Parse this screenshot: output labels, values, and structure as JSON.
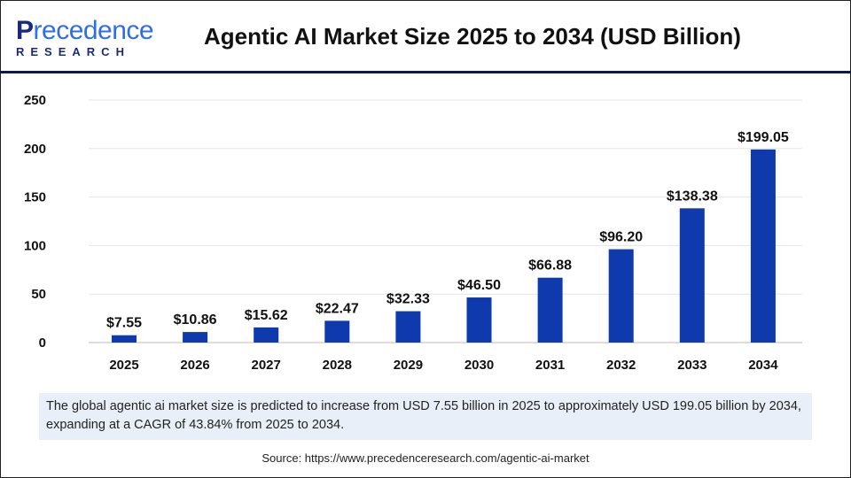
{
  "brand": {
    "name_part1": "P",
    "name_part2": "recedence",
    "tagline": "RESEARCH"
  },
  "title": "Agentic AI Market Size 2025 to 2034 (USD Billion)",
  "chart_data": {
    "type": "bar",
    "categories": [
      "2025",
      "2026",
      "2027",
      "2028",
      "2029",
      "2030",
      "2031",
      "2032",
      "2033",
      "2034"
    ],
    "values": [
      7.55,
      10.86,
      15.62,
      22.47,
      32.33,
      46.5,
      66.88,
      96.2,
      138.38,
      199.05
    ],
    "data_labels": [
      "$7.55",
      "$10.86",
      "$15.62",
      "$22.47",
      "$32.33",
      "$46.50",
      "$66.88",
      "$96.20",
      "$138.38",
      "$199.05"
    ],
    "ylim": [
      0,
      250
    ],
    "yticks": [
      "0",
      "50",
      "100",
      "150",
      "200",
      "250"
    ],
    "grid": true,
    "bar_color": "#0f3aad"
  },
  "caption": "The global agentic ai market size is predicted to increase from USD 7.55 billion in 2025 to approximately USD 199.05 billion by 2034, expanding at a CAGR of 43.84% from 2025 to 2034.",
  "source": "Source: https://www.precedenceresearch.com/agentic-ai-market"
}
